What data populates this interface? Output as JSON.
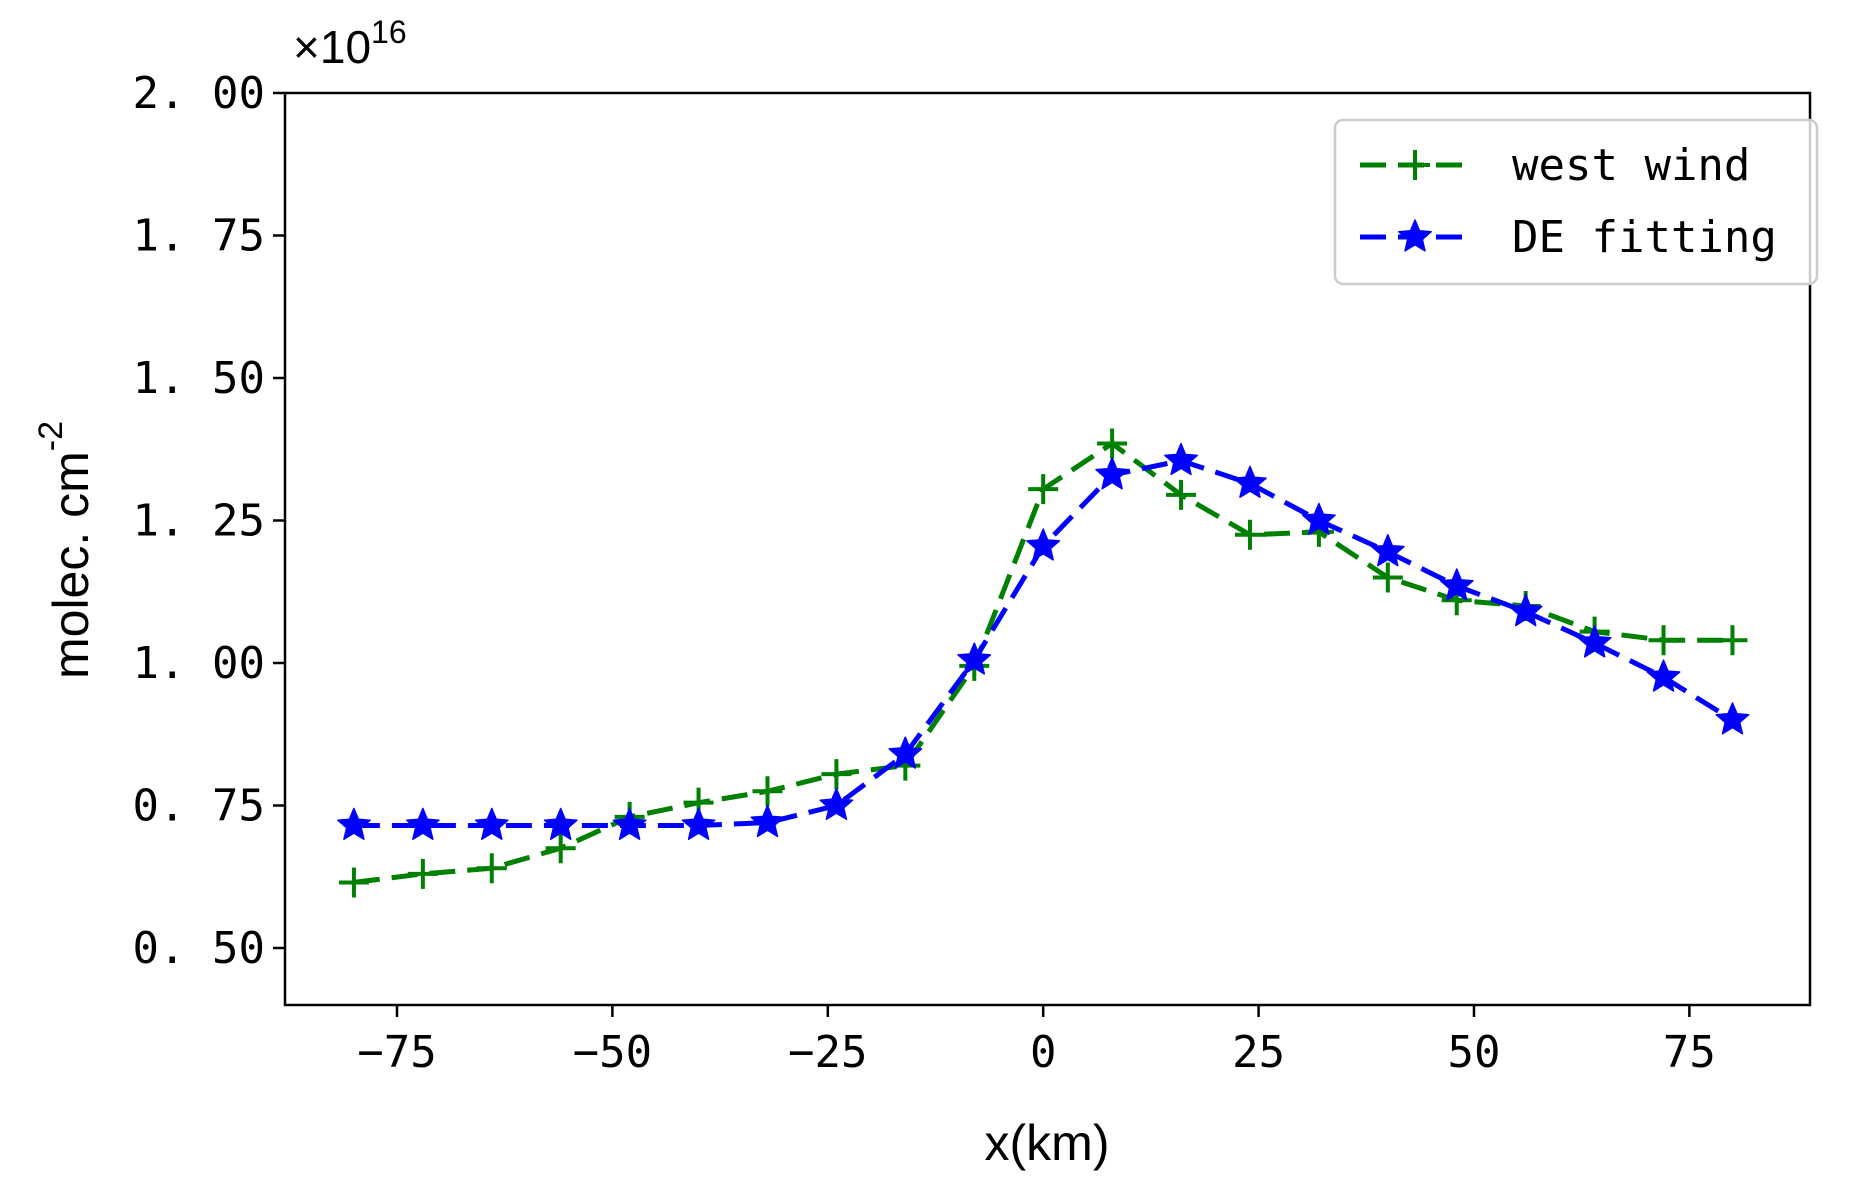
{
  "chart_data": {
    "type": "line",
    "title": "",
    "xlabel": "x(km)",
    "ylabel": "molec. cm",
    "ylabel_superscript": "-2",
    "y_multiplier": "×10",
    "y_multiplier_exponent": "16",
    "xlim": [
      -88,
      89
    ],
    "ylim": [
      0.4,
      2.0
    ],
    "x_ticks": [
      -75,
      -50,
      -25,
      0,
      25,
      50,
      75
    ],
    "x_tick_labels": [
      "−75",
      "−50",
      "−25",
      "0",
      "25",
      "50",
      "75"
    ],
    "y_ticks": [
      0.5,
      0.75,
      1.0,
      1.25,
      1.5,
      1.75,
      2.0
    ],
    "y_tick_labels": [
      "0. 50",
      "0. 75",
      "1. 00",
      "1. 25",
      "1. 50",
      "1. 75",
      "2. 00"
    ],
    "grid": false,
    "legend_position": "top-right",
    "x": [
      -80,
      -72,
      -64,
      -56,
      -48,
      -40,
      -32,
      -24,
      -16,
      -8,
      0,
      8,
      16,
      24,
      32,
      40,
      48,
      56,
      64,
      72,
      80
    ],
    "series": [
      {
        "name": "west wind",
        "color": "#008000",
        "marker": "plus",
        "linestyle": "dashed",
        "values": [
          0.615,
          0.63,
          0.64,
          0.675,
          0.73,
          0.755,
          0.775,
          0.805,
          0.82,
          0.995,
          1.305,
          1.385,
          1.295,
          1.225,
          1.23,
          1.15,
          1.11,
          1.1,
          1.055,
          1.04,
          1.04
        ]
      },
      {
        "name": "DE fitting",
        "color": "#0000ff",
        "marker": "star",
        "linestyle": "dashed",
        "values": [
          0.715,
          0.715,
          0.715,
          0.715,
          0.715,
          0.715,
          0.72,
          0.75,
          0.84,
          1.005,
          1.205,
          1.33,
          1.355,
          1.315,
          1.25,
          1.195,
          1.135,
          1.09,
          1.035,
          0.975,
          0.9
        ]
      }
    ]
  }
}
